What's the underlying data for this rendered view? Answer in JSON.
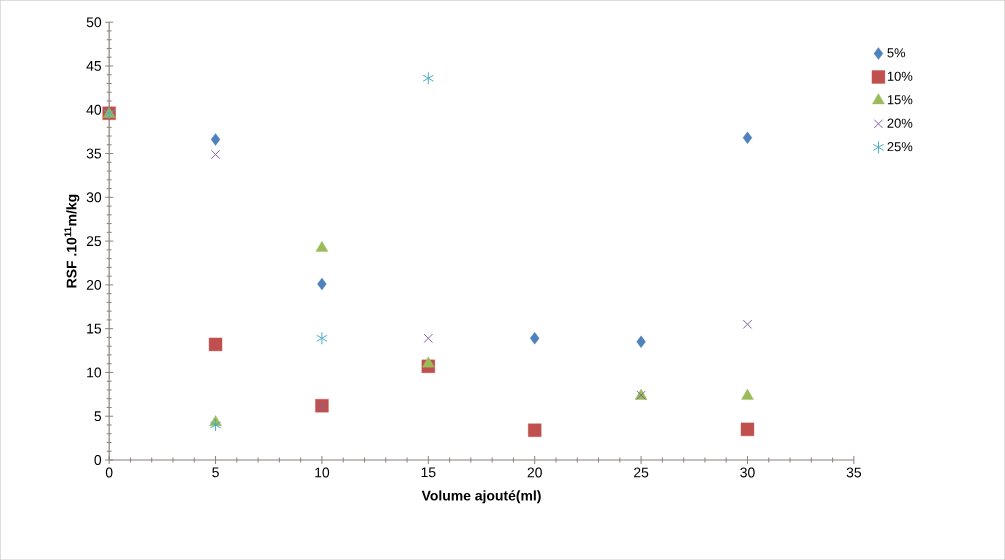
{
  "chart_data": {
    "type": "scatter",
    "xlabel": "Volume ajouté(ml)",
    "ylabel": "RSF .10$^{11}$m/kg",
    "xlim": [
      0,
      35
    ],
    "xticks": [
      0,
      5,
      10,
      15,
      20,
      25,
      30,
      35
    ],
    "ylim": [
      0,
      50
    ],
    "yticks": [
      0,
      5,
      10,
      15,
      20,
      25,
      30,
      35,
      40,
      45,
      50
    ],
    "grid": false,
    "legend": "right",
    "series": [
      {
        "name": "5%",
        "color": "#4f81bd",
        "marker": "diamond",
        "x": [
          5,
          10,
          20,
          25,
          30
        ],
        "values": [
          36.6,
          20.1,
          13.9,
          13.5,
          36.8
        ]
      },
      {
        "name": "10%",
        "color": "#c0504d",
        "marker": "square",
        "x": [
          0,
          5,
          10,
          15,
          20,
          30
        ],
        "values": [
          39.6,
          13.2,
          6.2,
          10.7,
          3.4,
          3.5
        ]
      },
      {
        "name": "15%",
        "color": "#9bbb59",
        "marker": "triangle",
        "x": [
          0,
          5,
          10,
          15,
          25,
          30
        ],
        "values": [
          39.5,
          4.3,
          24.2,
          11.0,
          7.3,
          7.3
        ]
      },
      {
        "name": "20%",
        "color": "#8064a2",
        "marker": "cross",
        "x": [
          5,
          10,
          15,
          25,
          30
        ],
        "values": [
          34.9,
          6.1,
          13.9,
          7.4,
          15.5
        ]
      },
      {
        "name": "25%",
        "color": "#4bacc6",
        "x": [
          0,
          5,
          10,
          15
        ],
        "values": [
          39.6,
          4.0,
          13.9,
          43.6
        ]
      }
    ]
  }
}
